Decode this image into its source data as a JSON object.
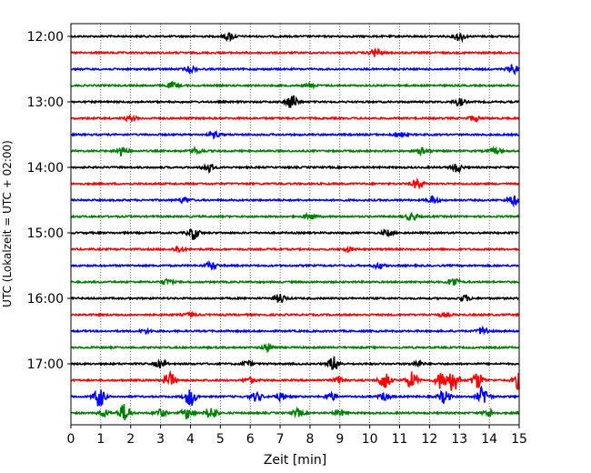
{
  "chart_data": {
    "type": "line",
    "title": "",
    "xlabel": "Zeit  [min]",
    "ylabel": "UTC (Lokalzeit = UTC + 02:00)",
    "xlim": [
      0,
      15
    ],
    "x_ticks": [
      "0",
      "1",
      "2",
      "3",
      "4",
      "5",
      "6",
      "7",
      "8",
      "9",
      "10",
      "11",
      "12",
      "13",
      "14",
      "15"
    ],
    "y_ticks": [
      "12:00",
      "13:00",
      "14:00",
      "15:00",
      "16:00",
      "17:00"
    ],
    "grid": "vertical dotted",
    "colors": [
      "#000000",
      "#ff0000",
      "#0000ff",
      "#008000"
    ],
    "traces_start": "12:00",
    "trace_interval_min": 15,
    "traces": [
      {
        "start": "12:00",
        "color": "#000000",
        "events": [
          [
            5.3,
            4
          ],
          [
            13.0,
            5
          ]
        ]
      },
      {
        "start": "12:15",
        "color": "#ff0000",
        "events": [
          [
            10.2,
            5
          ]
        ]
      },
      {
        "start": "12:30",
        "color": "#0000ff",
        "events": [
          [
            4.0,
            3
          ],
          [
            14.8,
            5
          ]
        ]
      },
      {
        "start": "12:45",
        "color": "#008000",
        "events": [
          [
            3.4,
            3
          ],
          [
            8.0,
            2
          ]
        ]
      },
      {
        "start": "13:00",
        "color": "#000000",
        "events": [
          [
            7.4,
            8
          ],
          [
            13.0,
            4
          ]
        ]
      },
      {
        "start": "13:15",
        "color": "#ff0000",
        "events": [
          [
            2.0,
            3
          ],
          [
            13.5,
            3
          ]
        ]
      },
      {
        "start": "13:30",
        "color": "#0000ff",
        "events": [
          [
            4.8,
            3
          ],
          [
            11.0,
            3
          ]
        ]
      },
      {
        "start": "13:45",
        "color": "#008000",
        "events": [
          [
            1.7,
            5
          ],
          [
            4.2,
            3
          ],
          [
            11.8,
            4
          ],
          [
            14.2,
            3
          ]
        ]
      },
      {
        "start": "14:00",
        "color": "#000000",
        "events": [
          [
            4.6,
            5
          ],
          [
            12.9,
            5
          ]
        ]
      },
      {
        "start": "14:15",
        "color": "#ff0000",
        "events": [
          [
            11.6,
            5
          ]
        ]
      },
      {
        "start": "14:30",
        "color": "#0000ff",
        "events": [
          [
            3.8,
            3
          ],
          [
            12.1,
            4
          ],
          [
            14.8,
            5
          ]
        ]
      },
      {
        "start": "14:45",
        "color": "#008000",
        "events": [
          [
            8.0,
            3
          ],
          [
            11.4,
            4
          ]
        ]
      },
      {
        "start": "15:00",
        "color": "#000000",
        "events": [
          [
            4.1,
            7
          ],
          [
            10.6,
            3
          ]
        ]
      },
      {
        "start": "15:15",
        "color": "#ff0000",
        "events": [
          [
            3.6,
            3
          ],
          [
            9.3,
            2
          ]
        ]
      },
      {
        "start": "15:30",
        "color": "#0000ff",
        "events": [
          [
            4.7,
            4
          ],
          [
            10.3,
            3
          ]
        ]
      },
      {
        "start": "15:45",
        "color": "#008000",
        "events": [
          [
            3.2,
            3
          ],
          [
            12.8,
            5
          ]
        ]
      },
      {
        "start": "16:00",
        "color": "#000000",
        "events": [
          [
            7.0,
            5
          ],
          [
            13.2,
            3
          ]
        ]
      },
      {
        "start": "16:15",
        "color": "#ff0000",
        "events": [
          [
            4.0,
            2
          ],
          [
            12.5,
            2
          ]
        ]
      },
      {
        "start": "16:30",
        "color": "#0000ff",
        "events": [
          [
            2.5,
            2
          ],
          [
            13.8,
            4
          ]
        ]
      },
      {
        "start": "16:45",
        "color": "#008000",
        "events": [
          [
            6.6,
            4
          ]
        ]
      },
      {
        "start": "17:00",
        "color": "#000000",
        "events": [
          [
            3.0,
            4
          ],
          [
            5.9,
            3
          ],
          [
            8.8,
            8
          ],
          [
            11.6,
            3
          ]
        ]
      },
      {
        "start": "17:15",
        "color": "#ff0000",
        "events": [
          [
            3.3,
            8
          ],
          [
            6.0,
            3
          ],
          [
            9.0,
            4
          ],
          [
            10.5,
            10
          ],
          [
            11.4,
            9
          ],
          [
            12.4,
            10
          ],
          [
            12.8,
            12
          ],
          [
            13.6,
            9
          ],
          [
            15.0,
            10
          ]
        ]
      },
      {
        "start": "17:30",
        "color": "#0000ff",
        "events": [
          [
            0.95,
            11
          ],
          [
            4.0,
            10
          ],
          [
            6.2,
            5
          ],
          [
            7.0,
            4
          ],
          [
            8.7,
            4
          ],
          [
            10.5,
            4
          ],
          [
            12.5,
            7
          ],
          [
            13.8,
            11
          ]
        ]
      },
      {
        "start": "17:45",
        "color": "#008000",
        "events": [
          [
            1.1,
            4
          ],
          [
            1.8,
            10
          ],
          [
            3.0,
            4
          ],
          [
            3.9,
            6
          ],
          [
            4.7,
            7
          ],
          [
            7.6,
            4
          ],
          [
            9.0,
            3
          ],
          [
            14.0,
            4
          ]
        ]
      }
    ]
  }
}
